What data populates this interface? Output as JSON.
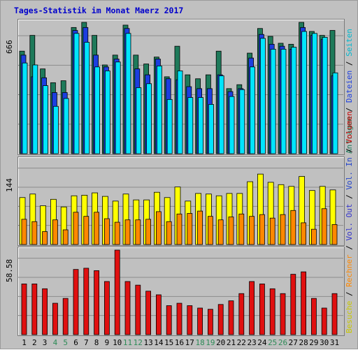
{
  "title": "Tages-Statistik im Monat Maerz 2017",
  "colors": {
    "anfragen": "#1e7a5a",
    "dateien": "#1c3ee0",
    "seiten": "#00e5ff",
    "besuche": "#ffff00",
    "rechner": "#ff8800",
    "volumen": "#e01010",
    "weekend_label": "#2e8b57",
    "weekday_label": "#000000"
  },
  "side_labels": {
    "panel1": [
      "Anfragen",
      "Dateien",
      "Seiten"
    ],
    "panel1_colors": [
      "#1e7a5a",
      "#1c3ee0",
      "#00b8d0"
    ],
    "panel2": [
      "Besuche",
      "Rechner",
      "Vol. Out",
      "Vol. In",
      "Volumen"
    ],
    "panel2_colors": [
      "#c8c800",
      "#ff8800",
      "#3333cc",
      "#2244cc",
      "#cc0000"
    ],
    "separator": "/"
  },
  "chart_data": [
    {
      "type": "bar",
      "panel": "top",
      "ymax_label": "666",
      "ylim": [
        0,
        666
      ],
      "categories": [
        "1",
        "2",
        "3",
        "4",
        "5",
        "6",
        "7",
        "8",
        "9",
        "10",
        "11",
        "12",
        "13",
        "14",
        "15",
        "16",
        "17",
        "18",
        "19",
        "20",
        "21",
        "22",
        "23",
        "24",
        "25",
        "26",
        "27",
        "28",
        "29",
        "30",
        "31"
      ],
      "weekend_days": [
        "4",
        "5",
        "11",
        "12",
        "18",
        "19",
        "25",
        "26"
      ],
      "series": [
        {
          "name": "Anfragen",
          "values": [
            520,
            600,
            430,
            360,
            370,
            640,
            666,
            600,
            450,
            500,
            652,
            500,
            455,
            490,
            390,
            545,
            400,
            380,
            400,
            520,
            330,
            350,
            510,
            635,
            595,
            560,
            555,
            666,
            620,
            600,
            625
          ]
        },
        {
          "name": "Dateien",
          "values": [
            500,
            390,
            385,
            310,
            310,
            625,
            640,
            500,
            440,
            480,
            635,
            430,
            400,
            480,
            380,
            375,
            340,
            330,
            330,
            400,
            315,
            330,
            485,
            605,
            555,
            545,
            530,
            640,
            600,
            580,
            395
          ]
        },
        {
          "name": "Seiten",
          "values": [
            460,
            450,
            345,
            240,
            280,
            610,
            565,
            440,
            420,
            465,
            610,
            335,
            355,
            445,
            275,
            420,
            285,
            285,
            250,
            395,
            290,
            325,
            440,
            585,
            530,
            530,
            540,
            620,
            610,
            590,
            410
          ]
        }
      ]
    },
    {
      "type": "bar",
      "panel": "middle",
      "ymax_label": "144",
      "ylim": [
        0,
        144
      ],
      "series": [
        {
          "name": "Besuche",
          "values": [
            80,
            86,
            66,
            77,
            64,
            83,
            84,
            88,
            82,
            74,
            86,
            76,
            76,
            89,
            80,
            98,
            74,
            87,
            86,
            83,
            87,
            87,
            107,
            120,
            106,
            102,
            99,
            116,
            92,
            99,
            93
          ]
        },
        {
          "name": "Rechner",
          "values": [
            43,
            39,
            22,
            42,
            25,
            55,
            48,
            55,
            44,
            38,
            42,
            42,
            43,
            56,
            39,
            52,
            53,
            57,
            48,
            42,
            47,
            52,
            48,
            51,
            45,
            51,
            58,
            37,
            26,
            61,
            34
          ]
        }
      ]
    },
    {
      "type": "bar",
      "panel": "bottom",
      "ymax_label": "58.58",
      "ylim": [
        0,
        70
      ],
      "series": [
        {
          "name": "Volumen",
          "values": [
            42,
            42,
            38,
            26,
            30,
            54,
            55,
            53,
            44,
            70,
            44,
            41,
            36,
            33,
            24,
            26,
            24,
            22,
            21,
            25,
            28,
            34,
            44,
            42,
            38,
            34,
            50,
            52,
            30,
            22,
            34
          ]
        }
      ]
    }
  ]
}
